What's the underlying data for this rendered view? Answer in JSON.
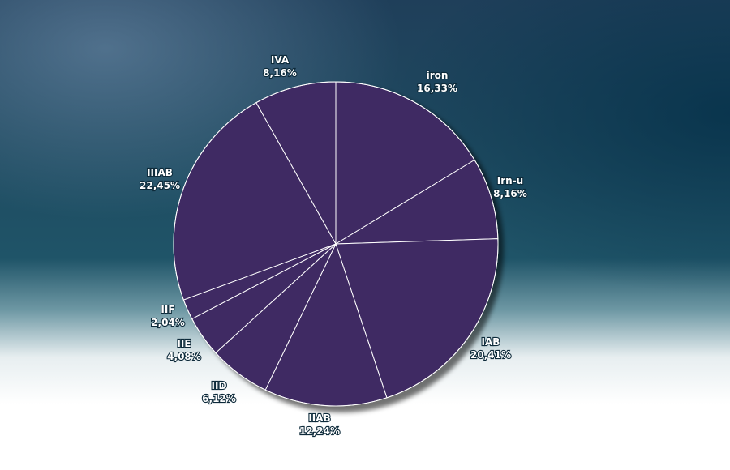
{
  "chart_data": {
    "type": "pie",
    "slices": [
      {
        "label": "iron",
        "value_text": "16,33%",
        "value": 16.33
      },
      {
        "label": "Irn-u",
        "value_text": "8,16%",
        "value": 8.16
      },
      {
        "label": "IAB",
        "value_text": "20,41%",
        "value": 20.41
      },
      {
        "label": "IIAB",
        "value_text": "12,24%",
        "value": 12.24
      },
      {
        "label": "IID",
        "value_text": "6,12%",
        "value": 6.12
      },
      {
        "label": "IIE",
        "value_text": "4,08%",
        "value": 4.08
      },
      {
        "label": "IIF",
        "value_text": "2,04%",
        "value": 2.04
      },
      {
        "label": "IIIAB",
        "value_text": "22,45%",
        "value": 22.45
      },
      {
        "label": "IVA",
        "value_text": "8,16%",
        "value": 8.16
      }
    ],
    "start": "12 o'clock",
    "direction": "clockwise",
    "slice_color": "#3f2a63",
    "slice_border_color": "#ffffff"
  }
}
